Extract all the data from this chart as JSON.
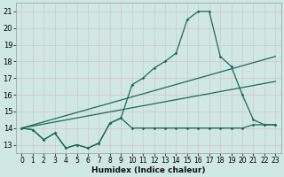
{
  "xlabel": "Humidex (Indice chaleur)",
  "background_color": "#cfe8e4",
  "grid_color": "#c0d8d4",
  "line_color": "#1a6b5a",
  "xlim": [
    -0.5,
    23.5
  ],
  "ylim": [
    12.5,
    21.5
  ],
  "xticks": [
    0,
    1,
    2,
    3,
    4,
    5,
    6,
    7,
    8,
    9,
    10,
    11,
    12,
    13,
    14,
    15,
    16,
    17,
    18,
    19,
    20,
    21,
    22,
    23
  ],
  "yticks": [
    13,
    14,
    15,
    16,
    17,
    18,
    19,
    20,
    21
  ],
  "series_curve_x": [
    0,
    1,
    2,
    3,
    4,
    5,
    6,
    7,
    8,
    9,
    10,
    11,
    12,
    13,
    14,
    15,
    16,
    17,
    18,
    19,
    20,
    21,
    22,
    23
  ],
  "series_curve_y": [
    14.0,
    13.9,
    13.3,
    13.7,
    12.8,
    13.0,
    12.8,
    13.1,
    14.3,
    14.6,
    16.6,
    17.0,
    17.6,
    18.0,
    18.5,
    20.5,
    21.0,
    21.0,
    18.3,
    17.7,
    16.0,
    14.5,
    14.2,
    14.2
  ],
  "series_flat_x": [
    0,
    1,
    2,
    3,
    4,
    5,
    6,
    7,
    8,
    9,
    10,
    11,
    12,
    13,
    14,
    15,
    16,
    17,
    18,
    19,
    20,
    21,
    22,
    23
  ],
  "series_flat_y": [
    14.0,
    13.9,
    13.3,
    13.7,
    12.8,
    13.0,
    12.8,
    13.1,
    14.3,
    14.6,
    14.0,
    14.0,
    14.0,
    14.0,
    14.0,
    14.0,
    14.0,
    14.0,
    14.0,
    14.0,
    14.0,
    14.2,
    14.2,
    14.2
  ],
  "trend1_x": [
    0,
    23
  ],
  "trend1_y": [
    14.0,
    18.3
  ],
  "trend2_x": [
    0,
    23
  ],
  "trend2_y": [
    14.0,
    16.8
  ]
}
